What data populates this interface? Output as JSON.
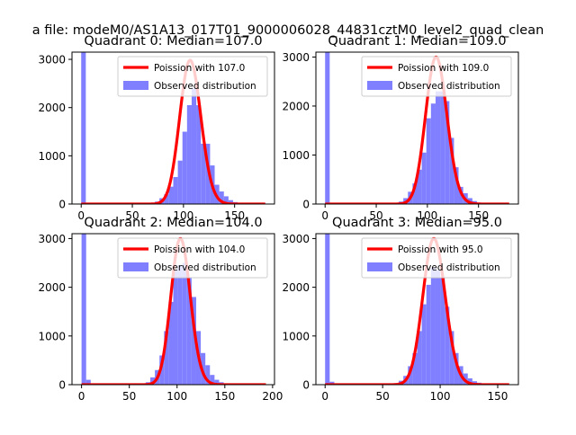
{
  "figure": {
    "suptitle": "a file: modeM0/AS1A13_017T01_9000006028_44831cztM0_level2_quad_clean"
  },
  "colors": {
    "poisson_line": "#ff0000",
    "observed_bars": "#7f7fff",
    "axes": "#000000"
  },
  "chart_data": [
    {
      "type": "bar",
      "title": "Quadrant 0: Median=107.0",
      "xlim": [
        -9,
        189
      ],
      "ylim": [
        0,
        3150
      ],
      "xticks": [
        0,
        50,
        100,
        150
      ],
      "yticks": [
        0,
        1000,
        2000,
        3000
      ],
      "median": 107.0,
      "legend_placement": "upper right",
      "series": [
        {
          "name": "Poission with 107.0",
          "kind": "line",
          "mean": 107.0,
          "peak": 2980,
          "x_range": [
            0,
            180
          ]
        },
        {
          "name": "Observed distribution",
          "kind": "histogram",
          "bin_width": 4.5,
          "bins": [
            {
              "x": 0,
              "count": 3150
            },
            {
              "x": 4.5,
              "count": 20
            },
            {
              "x": 9,
              "count": 10
            },
            {
              "x": 72,
              "count": 50
            },
            {
              "x": 76.5,
              "count": 120
            },
            {
              "x": 81,
              "count": 200
            },
            {
              "x": 85.5,
              "count": 360
            },
            {
              "x": 90,
              "count": 560
            },
            {
              "x": 94.5,
              "count": 900
            },
            {
              "x": 99,
              "count": 1500
            },
            {
              "x": 103.5,
              "count": 2050
            },
            {
              "x": 108,
              "count": 2400
            },
            {
              "x": 112.5,
              "count": 2050
            },
            {
              "x": 117,
              "count": 1250
            },
            {
              "x": 121.5,
              "count": 1250
            },
            {
              "x": 126,
              "count": 800
            },
            {
              "x": 130.5,
              "count": 400
            },
            {
              "x": 135,
              "count": 260
            },
            {
              "x": 139.5,
              "count": 160
            },
            {
              "x": 144,
              "count": 80
            },
            {
              "x": 148.5,
              "count": 40
            }
          ]
        }
      ]
    },
    {
      "type": "bar",
      "title": "Quadrant 1: Median=109.0",
      "xlim": [
        -9,
        189
      ],
      "ylim": [
        0,
        3100
      ],
      "xticks": [
        0,
        50,
        100,
        150
      ],
      "yticks": [
        0,
        1000,
        2000,
        3000
      ],
      "median": 109.0,
      "legend_placement": "upper right",
      "series": [
        {
          "name": "Poission with 109.0",
          "kind": "line",
          "mean": 109.0,
          "peak": 3000,
          "x_range": [
            0,
            180
          ]
        },
        {
          "name": "Observed distribution",
          "kind": "histogram",
          "bin_width": 4.5,
          "bins": [
            {
              "x": 0,
              "count": 3100
            },
            {
              "x": 4.5,
              "count": 20
            },
            {
              "x": 9,
              "count": 10
            },
            {
              "x": 72,
              "count": 50
            },
            {
              "x": 76.5,
              "count": 120
            },
            {
              "x": 81,
              "count": 250
            },
            {
              "x": 85.5,
              "count": 420
            },
            {
              "x": 90,
              "count": 700
            },
            {
              "x": 94.5,
              "count": 1050
            },
            {
              "x": 99,
              "count": 1750
            },
            {
              "x": 103.5,
              "count": 2050
            },
            {
              "x": 108,
              "count": 2300
            },
            {
              "x": 112.5,
              "count": 2300
            },
            {
              "x": 117,
              "count": 2100
            },
            {
              "x": 121.5,
              "count": 1350
            },
            {
              "x": 126,
              "count": 750
            },
            {
              "x": 130.5,
              "count": 350
            },
            {
              "x": 135,
              "count": 220
            },
            {
              "x": 139.5,
              "count": 120
            },
            {
              "x": 144,
              "count": 60
            },
            {
              "x": 148.5,
              "count": 30
            }
          ]
        }
      ]
    },
    {
      "type": "bar",
      "title": "Quadrant 2: Median=104.0",
      "xlim": [
        -10,
        202
      ],
      "ylim": [
        0,
        3100
      ],
      "xticks": [
        0,
        50,
        100,
        150,
        200
      ],
      "yticks": [
        0,
        1000,
        2000,
        3000
      ],
      "median": 104.0,
      "legend_placement": "upper right",
      "series": [
        {
          "name": "Poission with 104.0",
          "kind": "line",
          "mean": 104.0,
          "peak": 3000,
          "x_range": [
            0,
            193
          ]
        },
        {
          "name": "Observed distribution",
          "kind": "histogram",
          "bin_width": 4.8,
          "bins": [
            {
              "x": 0,
              "count": 3100
            },
            {
              "x": 4.8,
              "count": 100
            },
            {
              "x": 9.6,
              "count": 10
            },
            {
              "x": 67.2,
              "count": 50
            },
            {
              "x": 72,
              "count": 150
            },
            {
              "x": 76.8,
              "count": 300
            },
            {
              "x": 81.6,
              "count": 600
            },
            {
              "x": 86.4,
              "count": 1100
            },
            {
              "x": 91.2,
              "count": 1700
            },
            {
              "x": 96,
              "count": 2350
            },
            {
              "x": 100.8,
              "count": 2450
            },
            {
              "x": 105.6,
              "count": 2500
            },
            {
              "x": 110.4,
              "count": 2200
            },
            {
              "x": 115.2,
              "count": 1800
            },
            {
              "x": 120,
              "count": 1100
            },
            {
              "x": 124.8,
              "count": 650
            },
            {
              "x": 129.6,
              "count": 400
            },
            {
              "x": 134.4,
              "count": 200
            },
            {
              "x": 139.2,
              "count": 100
            },
            {
              "x": 144,
              "count": 50
            },
            {
              "x": 148.8,
              "count": 25
            }
          ]
        }
      ]
    },
    {
      "type": "bar",
      "title": "Quadrant 3: Median=95.0",
      "xlim": [
        -8,
        168
      ],
      "ylim": [
        0,
        3100
      ],
      "xticks": [
        0,
        50,
        100,
        150
      ],
      "yticks": [
        0,
        1000,
        2000,
        3000
      ],
      "median": 95.0,
      "legend_placement": "upper right",
      "series": [
        {
          "name": "Poission with 95.0",
          "kind": "line",
          "mean": 95.0,
          "peak": 3000,
          "x_range": [
            0,
            160
          ]
        },
        {
          "name": "Observed distribution",
          "kind": "histogram",
          "bin_width": 4.0,
          "bins": [
            {
              "x": 0,
              "count": 3100
            },
            {
              "x": 4,
              "count": 60
            },
            {
              "x": 8,
              "count": 10
            },
            {
              "x": 60,
              "count": 30
            },
            {
              "x": 64,
              "count": 80
            },
            {
              "x": 68,
              "count": 180
            },
            {
              "x": 72,
              "count": 380
            },
            {
              "x": 76,
              "count": 650
            },
            {
              "x": 80,
              "count": 1100
            },
            {
              "x": 84,
              "count": 1650
            },
            {
              "x": 88,
              "count": 2050
            },
            {
              "x": 92,
              "count": 2400
            },
            {
              "x": 96,
              "count": 2350
            },
            {
              "x": 100,
              "count": 2200
            },
            {
              "x": 104,
              "count": 1600
            },
            {
              "x": 108,
              "count": 1100
            },
            {
              "x": 112,
              "count": 650
            },
            {
              "x": 116,
              "count": 380
            },
            {
              "x": 120,
              "count": 230
            },
            {
              "x": 124,
              "count": 130
            },
            {
              "x": 128,
              "count": 70
            },
            {
              "x": 132,
              "count": 40
            }
          ]
        }
      ]
    }
  ]
}
